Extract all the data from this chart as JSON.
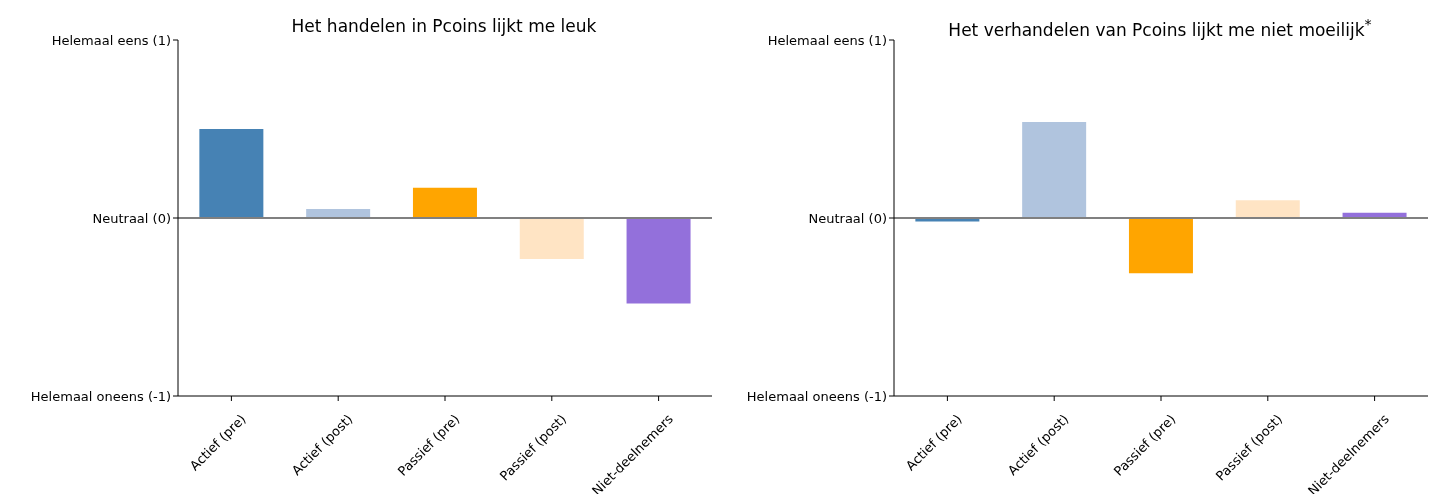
{
  "chart_data": [
    {
      "type": "bar",
      "title": "Het handelen in Pcoins lijkt me leuk",
      "categories": [
        "Actief (pre)",
        "Actief (post)",
        "Passief (pre)",
        "Passief (post)",
        "Niet-deelnemers"
      ],
      "values": [
        0.5,
        0.05,
        0.17,
        -0.23,
        -0.48
      ],
      "colors": [
        "#4682b4",
        "#b0c4de",
        "#ffa500",
        "#ffe4c4",
        "#9370db"
      ],
      "ylim": [
        -1,
        1
      ],
      "yticks": [
        {
          "value": -1,
          "label": "Helemaal oneens (-1)"
        },
        {
          "value": 0,
          "label": "Neutraal (0)"
        },
        {
          "value": 1,
          "label": "Helemaal eens (1)"
        }
      ],
      "ref_lines": [
        {
          "axis": "y",
          "value": 0,
          "color": "#808080"
        }
      ],
      "grid": false,
      "legend": false
    },
    {
      "type": "bar",
      "title": "Het verhandelen van Pcoins lijkt me niet moeilijk$^{*}$",
      "categories": [
        "Actief (pre)",
        "Actief (post)",
        "Passief (pre)",
        "Passief (post)",
        "Niet-deelnemers"
      ],
      "values": [
        -0.02,
        0.54,
        -0.31,
        0.1,
        0.03
      ],
      "colors": [
        "#4682b4",
        "#b0c4de",
        "#ffa500",
        "#ffe4c4",
        "#9370db"
      ],
      "ylim": [
        -1,
        1
      ],
      "yticks": [
        {
          "value": -1,
          "label": "Helemaal oneens (-1)"
        },
        {
          "value": 0,
          "label": "Neutraal (0)"
        },
        {
          "value": 1,
          "label": "Helemaal eens (1)"
        }
      ],
      "ref_lines": [
        {
          "axis": "y",
          "value": 0,
          "color": "#808080"
        }
      ],
      "grid": false,
      "legend": false
    }
  ]
}
